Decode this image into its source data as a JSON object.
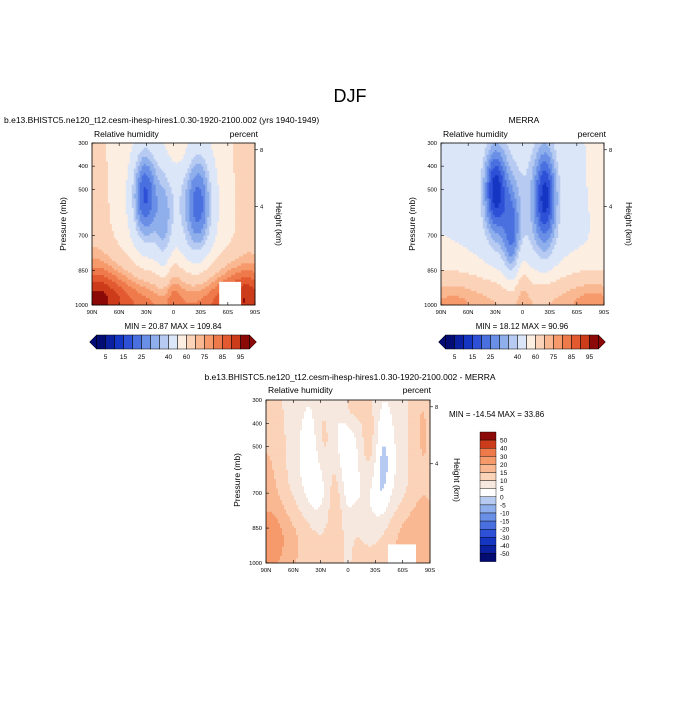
{
  "page_title": "DJF",
  "colors": {
    "pos": [
      "#fdeee2",
      "#fbd8c1",
      "#fbbf9f",
      "#f9a37e",
      "#f4865e",
      "#ee6842",
      "#e44a2a",
      "#d32f1b",
      "#b71a10",
      "#8b0a08"
    ],
    "neg": [
      "#ffffff",
      "#e1ebf9",
      "#c3d7f5",
      "#a5bff0",
      "#86a4eb",
      "#6585e6",
      "#4265e0",
      "#1f44d8",
      "#0e28b8",
      "#061696",
      "#030c73"
    ],
    "diff_pos": [
      "#f6e8de",
      "#fbd3b8",
      "#f9b891",
      "#f69a6c",
      "#ee7a4c",
      "#e35a30",
      "#cc3b1a",
      "#a81e0f",
      "#8b0a08"
    ],
    "diff_neg": [
      "#ffffff",
      "#dbe6f8",
      "#b7cbf2",
      "#8faeec",
      "#6a8fe6",
      "#4a70e0",
      "#2d50d6",
      "#1536c2",
      "#0b20a0",
      "#030c73"
    ]
  },
  "labels": {
    "left_field": "Relative humidity",
    "right_unit": "percent",
    "y_left": "Pressure (mb)",
    "y_right": "Height (km)"
  },
  "chart_data": [
    {
      "type": "heatmap",
      "panel": "model",
      "title": "b.e13.BHISTC5.ne120_t12.cesm-ihesp-hires1.0.30-1920-2100.002 (yrs 1940-1949)",
      "x_ticks": [
        "90N",
        "60N",
        "30N",
        "0",
        "30S",
        "60S",
        "90S"
      ],
      "x_range": [
        90,
        -90
      ],
      "y_ticks": [
        "300",
        "400",
        "500",
        "700",
        "850",
        "1000"
      ],
      "y_tick_values": [
        300,
        400,
        500,
        700,
        850,
        1000
      ],
      "y_range": [
        300,
        1000
      ],
      "height_ticks": [
        "8",
        "4"
      ],
      "minmax_text": "MIN =  20.87   MAX =  109.84",
      "min": 20.87,
      "max": 109.84,
      "colorbar_labels": [
        "5",
        "15",
        "25",
        "40",
        "60",
        "75",
        "85",
        "95"
      ],
      "colorbar_levels": [
        5,
        10,
        15,
        20,
        25,
        30,
        35,
        40,
        50,
        60,
        70,
        75,
        80,
        85,
        90,
        95
      ],
      "missing_region": {
        "lat_start": -50,
        "lat_end": -75,
        "p_start": 905,
        "p_end": 1000
      }
    },
    {
      "type": "heatmap",
      "panel": "obs",
      "title": "MERRA",
      "x_ticks": [
        "90N",
        "60N",
        "30N",
        "0",
        "30S",
        "60S",
        "90S"
      ],
      "x_range": [
        90,
        -90
      ],
      "y_ticks": [
        "300",
        "400",
        "500",
        "700",
        "850",
        "1000"
      ],
      "y_tick_values": [
        300,
        400,
        500,
        700,
        850,
        1000
      ],
      "y_range": [
        300,
        1000
      ],
      "height_ticks": [
        "8",
        "4"
      ],
      "minmax_text": "MIN =  18.12   MAX =  90.96",
      "min": 18.12,
      "max": 90.96,
      "colorbar_labels": [
        "5",
        "15",
        "25",
        "40",
        "60",
        "75",
        "85",
        "95"
      ],
      "colorbar_levels": [
        5,
        10,
        15,
        20,
        25,
        30,
        35,
        40,
        50,
        60,
        70,
        75,
        80,
        85,
        90,
        95
      ]
    },
    {
      "type": "heatmap",
      "panel": "diff",
      "title": "b.e13.BHISTC5.ne120_t12.cesm-ihesp-hires1.0.30-1920-2100.002 - MERRA",
      "x_ticks": [
        "90N",
        "60N",
        "30N",
        "0",
        "30S",
        "60S",
        "90S"
      ],
      "x_range": [
        90,
        -90
      ],
      "y_ticks": [
        "300",
        "400",
        "500",
        "700",
        "850",
        "1000"
      ],
      "y_tick_values": [
        300,
        400,
        500,
        700,
        850,
        1000
      ],
      "y_range": [
        300,
        1000
      ],
      "height_ticks": [
        "8",
        "4"
      ],
      "minmax_text": "MIN = -14.54   MAX =  33.86",
      "min": -14.54,
      "max": 33.86,
      "colorbar_labels": [
        "50",
        "40",
        "30",
        "20",
        "15",
        "10",
        "5",
        "0",
        "-5",
        "-10",
        "-15",
        "-20",
        "-30",
        "-40",
        "-50"
      ],
      "missing_region": {
        "lat_start": -45,
        "lat_end": -75,
        "p_start": 925,
        "p_end": 1000
      }
    }
  ]
}
